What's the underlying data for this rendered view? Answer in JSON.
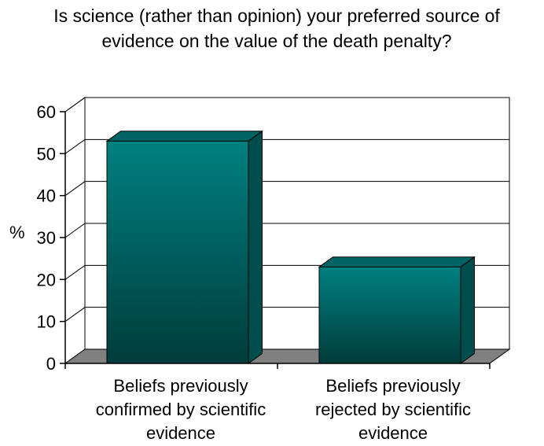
{
  "chart_data": {
    "type": "bar",
    "title": "Is science (rather than opinion) your preferred source of evidence on the value of the death penalty?",
    "title_lines": [
      "Is science (rather than opinion) your preferred source of",
      "evidence on the value of the death penalty?"
    ],
    "xlabel": "",
    "ylabel": "%",
    "ylim": [
      0,
      60
    ],
    "yticks": [
      0,
      10,
      20,
      30,
      40,
      50,
      60
    ],
    "grid": true,
    "legend": "none",
    "categories": [
      "Beliefs previously confirmed by scientific evidence",
      "Beliefs previously rejected by scientific evidence"
    ],
    "category_lines": [
      [
        "Beliefs previously",
        "confirmed by scientific",
        "evidence"
      ],
      [
        "Beliefs previously",
        "rejected by scientific",
        "evidence"
      ]
    ],
    "values": [
      53,
      23
    ],
    "colors": {
      "bar_top": "#008080",
      "bar_bottom": "#003c3c",
      "bar_side": "#004d4d",
      "bar_cap": "#006464",
      "floor": "#808080",
      "grid": "#000000"
    }
  }
}
